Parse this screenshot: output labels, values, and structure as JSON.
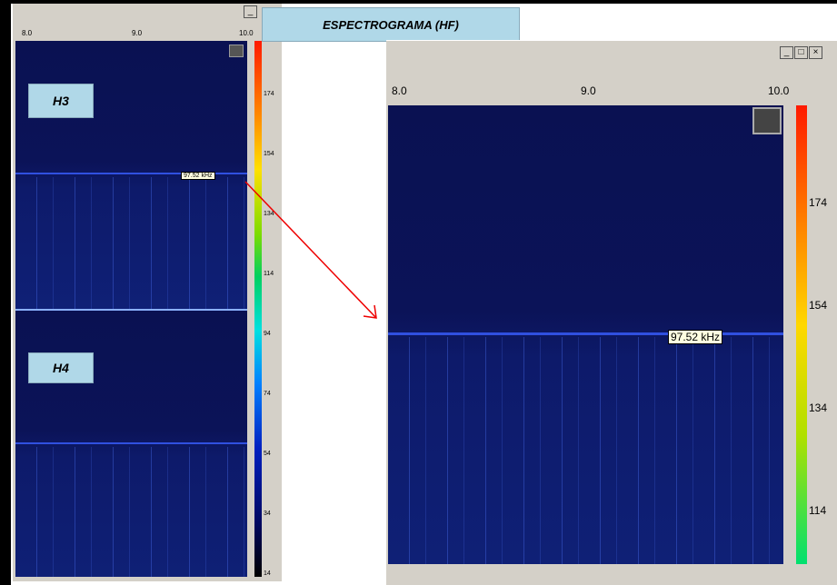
{
  "title": "ESPECTROGRAMA (HF)",
  "left_window": {
    "x_labels": [
      "8.0",
      "9.0",
      "10.0"
    ],
    "colorbar_labels": [
      "174",
      "154",
      "134",
      "114",
      "94",
      "74",
      "54",
      "34",
      "14"
    ],
    "panel_top_label": "H3",
    "panel_bottom_label": "H4",
    "tooltip": "97.52 kHz"
  },
  "right_window": {
    "x_labels": [
      "8.0",
      "9.0",
      "10.0"
    ],
    "colorbar_labels": [
      "174",
      "154",
      "134",
      "114"
    ],
    "tooltip": "97.52 kHz"
  }
}
